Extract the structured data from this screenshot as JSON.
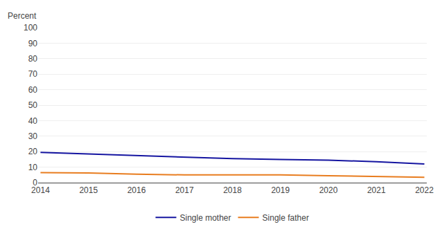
{
  "chart_data": {
    "type": "line",
    "y_label": "Percent",
    "x": [
      2014,
      2015,
      2016,
      2017,
      2018,
      2019,
      2020,
      2021,
      2022
    ],
    "series": [
      {
        "name": "Single mother",
        "color": "#1414a0",
        "values": [
          19.5,
          18.5,
          17.5,
          16.5,
          15.5,
          15.0,
          14.5,
          13.5,
          12.0
        ]
      },
      {
        "name": "Single father",
        "color": "#e87c1e",
        "values": [
          6.5,
          6.2,
          5.5,
          5.0,
          5.0,
          5.0,
          4.5,
          4.0,
          3.5
        ]
      }
    ],
    "xlim": [
      2013.95,
      2022.05
    ],
    "xticks": [
      2014,
      2015,
      2016,
      2017,
      2018,
      2019,
      2020,
      2021,
      2022
    ],
    "ylim": [
      0,
      100
    ],
    "yticks": [
      0,
      10,
      20,
      30,
      40,
      50,
      60,
      70,
      80,
      90,
      100
    ],
    "grid": true,
    "legend": "bottom"
  }
}
